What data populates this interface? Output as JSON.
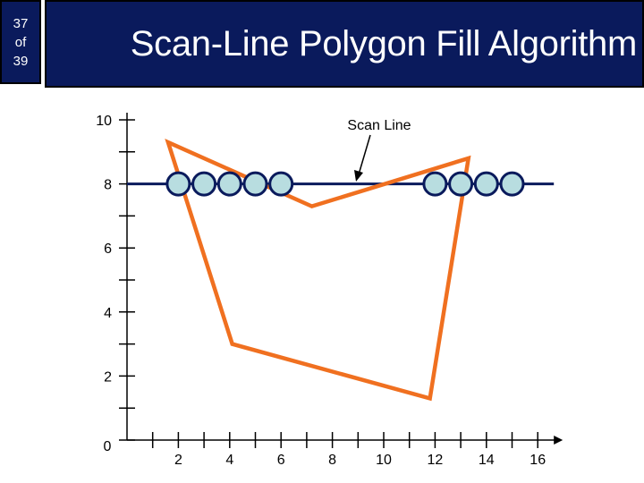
{
  "slide": {
    "current": "37",
    "of": "of",
    "total": "39"
  },
  "title": "Scan-Line Polygon Fill Algorithm",
  "colors": {
    "header_bg": "#0a1a5c",
    "polygon": "#f07020",
    "scan_line": "#0a1a5c",
    "pixel_fill": "#b8dde0",
    "pixel_stroke": "#0a1a5c"
  },
  "chart_data": {
    "type": "diagram",
    "title": "Scan-Line Polygon Fill Algorithm",
    "annotation": "Scan Line",
    "x_tick_labels": [
      "2",
      "4",
      "6",
      "8",
      "10",
      "12",
      "14",
      "16"
    ],
    "y_tick_labels": [
      "0",
      "2",
      "4",
      "6",
      "8",
      "10"
    ],
    "xlim": [
      0,
      16
    ],
    "ylim": [
      0,
      10
    ],
    "polygon": [
      {
        "x": 1.6,
        "y": 9.3
      },
      {
        "x": 7.2,
        "y": 7.3
      },
      {
        "x": 13.3,
        "y": 8.8
      },
      {
        "x": 11.8,
        "y": 1.3
      },
      {
        "x": 4.1,
        "y": 3.0
      }
    ],
    "scan_line_y": 8,
    "filled_pixels_y": 8,
    "filled_pixels_x": [
      2,
      3,
      4,
      5,
      6,
      12,
      13,
      14,
      15
    ]
  }
}
